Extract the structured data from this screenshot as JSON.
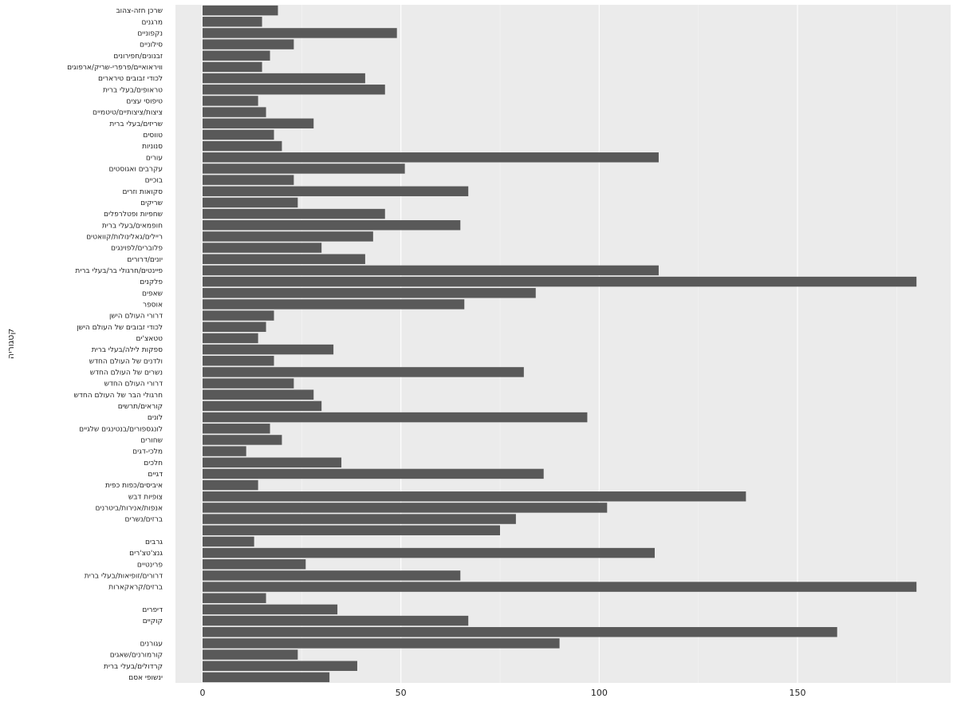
{
  "chart_data": {
    "type": "bar",
    "orientation": "horizontal",
    "ylabel": "קטגוריה",
    "xlabel": "",
    "x_ticks": [
      "0",
      "50",
      "100",
      "150"
    ],
    "xlim": [
      0,
      192
    ],
    "grid": true,
    "colors": {
      "bar": "#595959",
      "panel": "#ebebeb",
      "grid_major": "#ffffff",
      "grid_minor": "#f5f5f5"
    },
    "categories": [
      "שרכן חזה-צהוב",
      "מרגנים",
      "נקפוניים",
      "סילוניים",
      "זבנונים/חפירונים",
      "וויראואיים/פרפרי-שריק/ארפוגים",
      "לכודי זבובים טירארים",
      "טראופים/בעלי ברית",
      "טיפוסי עצים",
      "ציצות/ציצותיים/טיטמיים",
      "שריזים/בעלי ברית",
      "טווסים",
      "סנוניות",
      "עורים",
      "עקרבים ואגוסטים",
      "בוכיים",
      "סקואות וזרים",
      "שריקים",
      "שחפיות ופטלרפלים",
      "חופמאים/בעלי ברית",
      "ריילים/גאלינולות/קוואטים",
      "פלוברים/לפוינגים",
      "יונים/דרורים",
      "פיינטים/חרגולי בר/בעלי ברית",
      "פלקנים",
      "שאפים",
      "אוספר",
      "דרורי העולם הישן",
      "לכודי זבובים של העולם הישן",
      "טטאצ'ים",
      "ספקות לילה/בעלי ברית",
      "ולדנים של העולם החדש",
      "נשרים של העולם החדש",
      "דרורי העולם החדש",
      "חרגולי הבר של העולם החדש",
      "קוראים/תרשים",
      "לונים",
      "לונגספורים/בנטינגים שלגיים",
      "שחורים",
      "מלכי-דגים",
      "חלכים",
      "דגיים",
      "איביסים/כפות כפית",
      "צופיות דבש",
      "אנפות/אנירות/ביטרנים",
      "ברזים/נשרים",
      "",
      "גרבים",
      "גנצ'טצ'רים",
      "פרינטיים",
      "דרורים/זופיאות/בעלי ברית",
      "ברזים/קראקארות",
      "",
      "דיפרים",
      "קוקיים",
      "",
      "עגורנים",
      "קורמורנים/שאגים",
      "קרדולים/בעלי ברית",
      "ינשופי אסם"
    ],
    "values": [
      19,
      15,
      49,
      23,
      17,
      15,
      41,
      46,
      14,
      16,
      28,
      18,
      20,
      115,
      51,
      23,
      67,
      24,
      46,
      65,
      43,
      30,
      41,
      115,
      180,
      84,
      66,
      18,
      16,
      14,
      33,
      18,
      81,
      23,
      28,
      30,
      97,
      17,
      20,
      11,
      35,
      86,
      14,
      137,
      102,
      79,
      75,
      13,
      114,
      26,
      65,
      180,
      16,
      34,
      67,
      160,
      90,
      24,
      39,
      32
    ]
  }
}
